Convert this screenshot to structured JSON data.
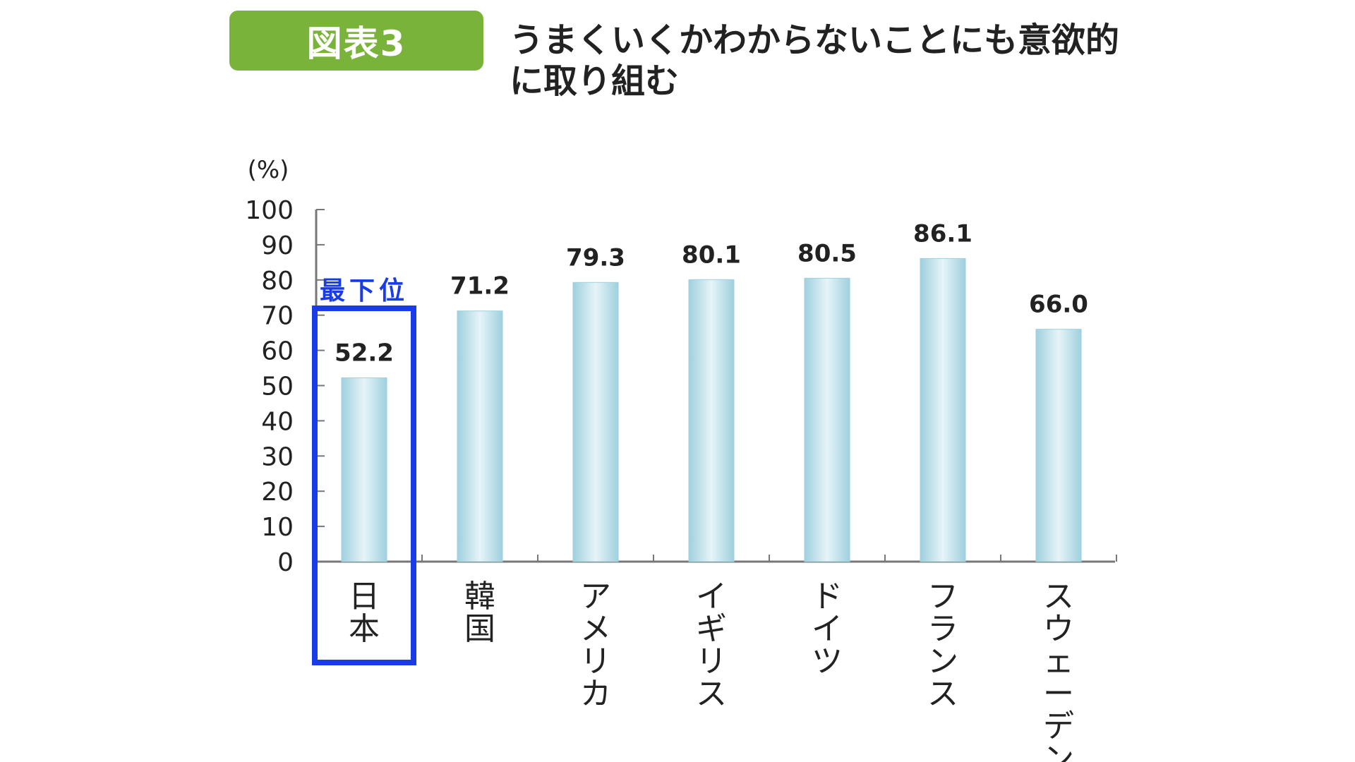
{
  "header": {
    "badge": "図表3",
    "title": "うまくいくかわからないことにも意欲的に取り組む"
  },
  "highlight": {
    "label": "最下位",
    "category_index": 0,
    "color": "#1a3be8"
  },
  "colors": {
    "badge": "#7ab33a",
    "bar_light": "#e6f4f8",
    "bar_dark": "#9fd0de"
  },
  "chart_data": {
    "type": "bar",
    "title": "うまくいくかわからないことにも意欲的に取り組む",
    "ylabel": "(%)",
    "xlabel": "",
    "ylim": [
      0,
      100
    ],
    "yticks": [
      0,
      10,
      20,
      30,
      40,
      50,
      60,
      70,
      80,
      90,
      100
    ],
    "categories": [
      "日本",
      "韓国",
      "アメリカ",
      "イギリス",
      "ドイツ",
      "フランス",
      "スウェーデン"
    ],
    "values": [
      52.2,
      71.2,
      79.3,
      80.1,
      80.5,
      86.1,
      66.0
    ],
    "value_labels": [
      "52.2",
      "71.2",
      "79.3",
      "80.1",
      "80.5",
      "86.1",
      "66.0"
    ],
    "grid": false,
    "legend": "none"
  }
}
